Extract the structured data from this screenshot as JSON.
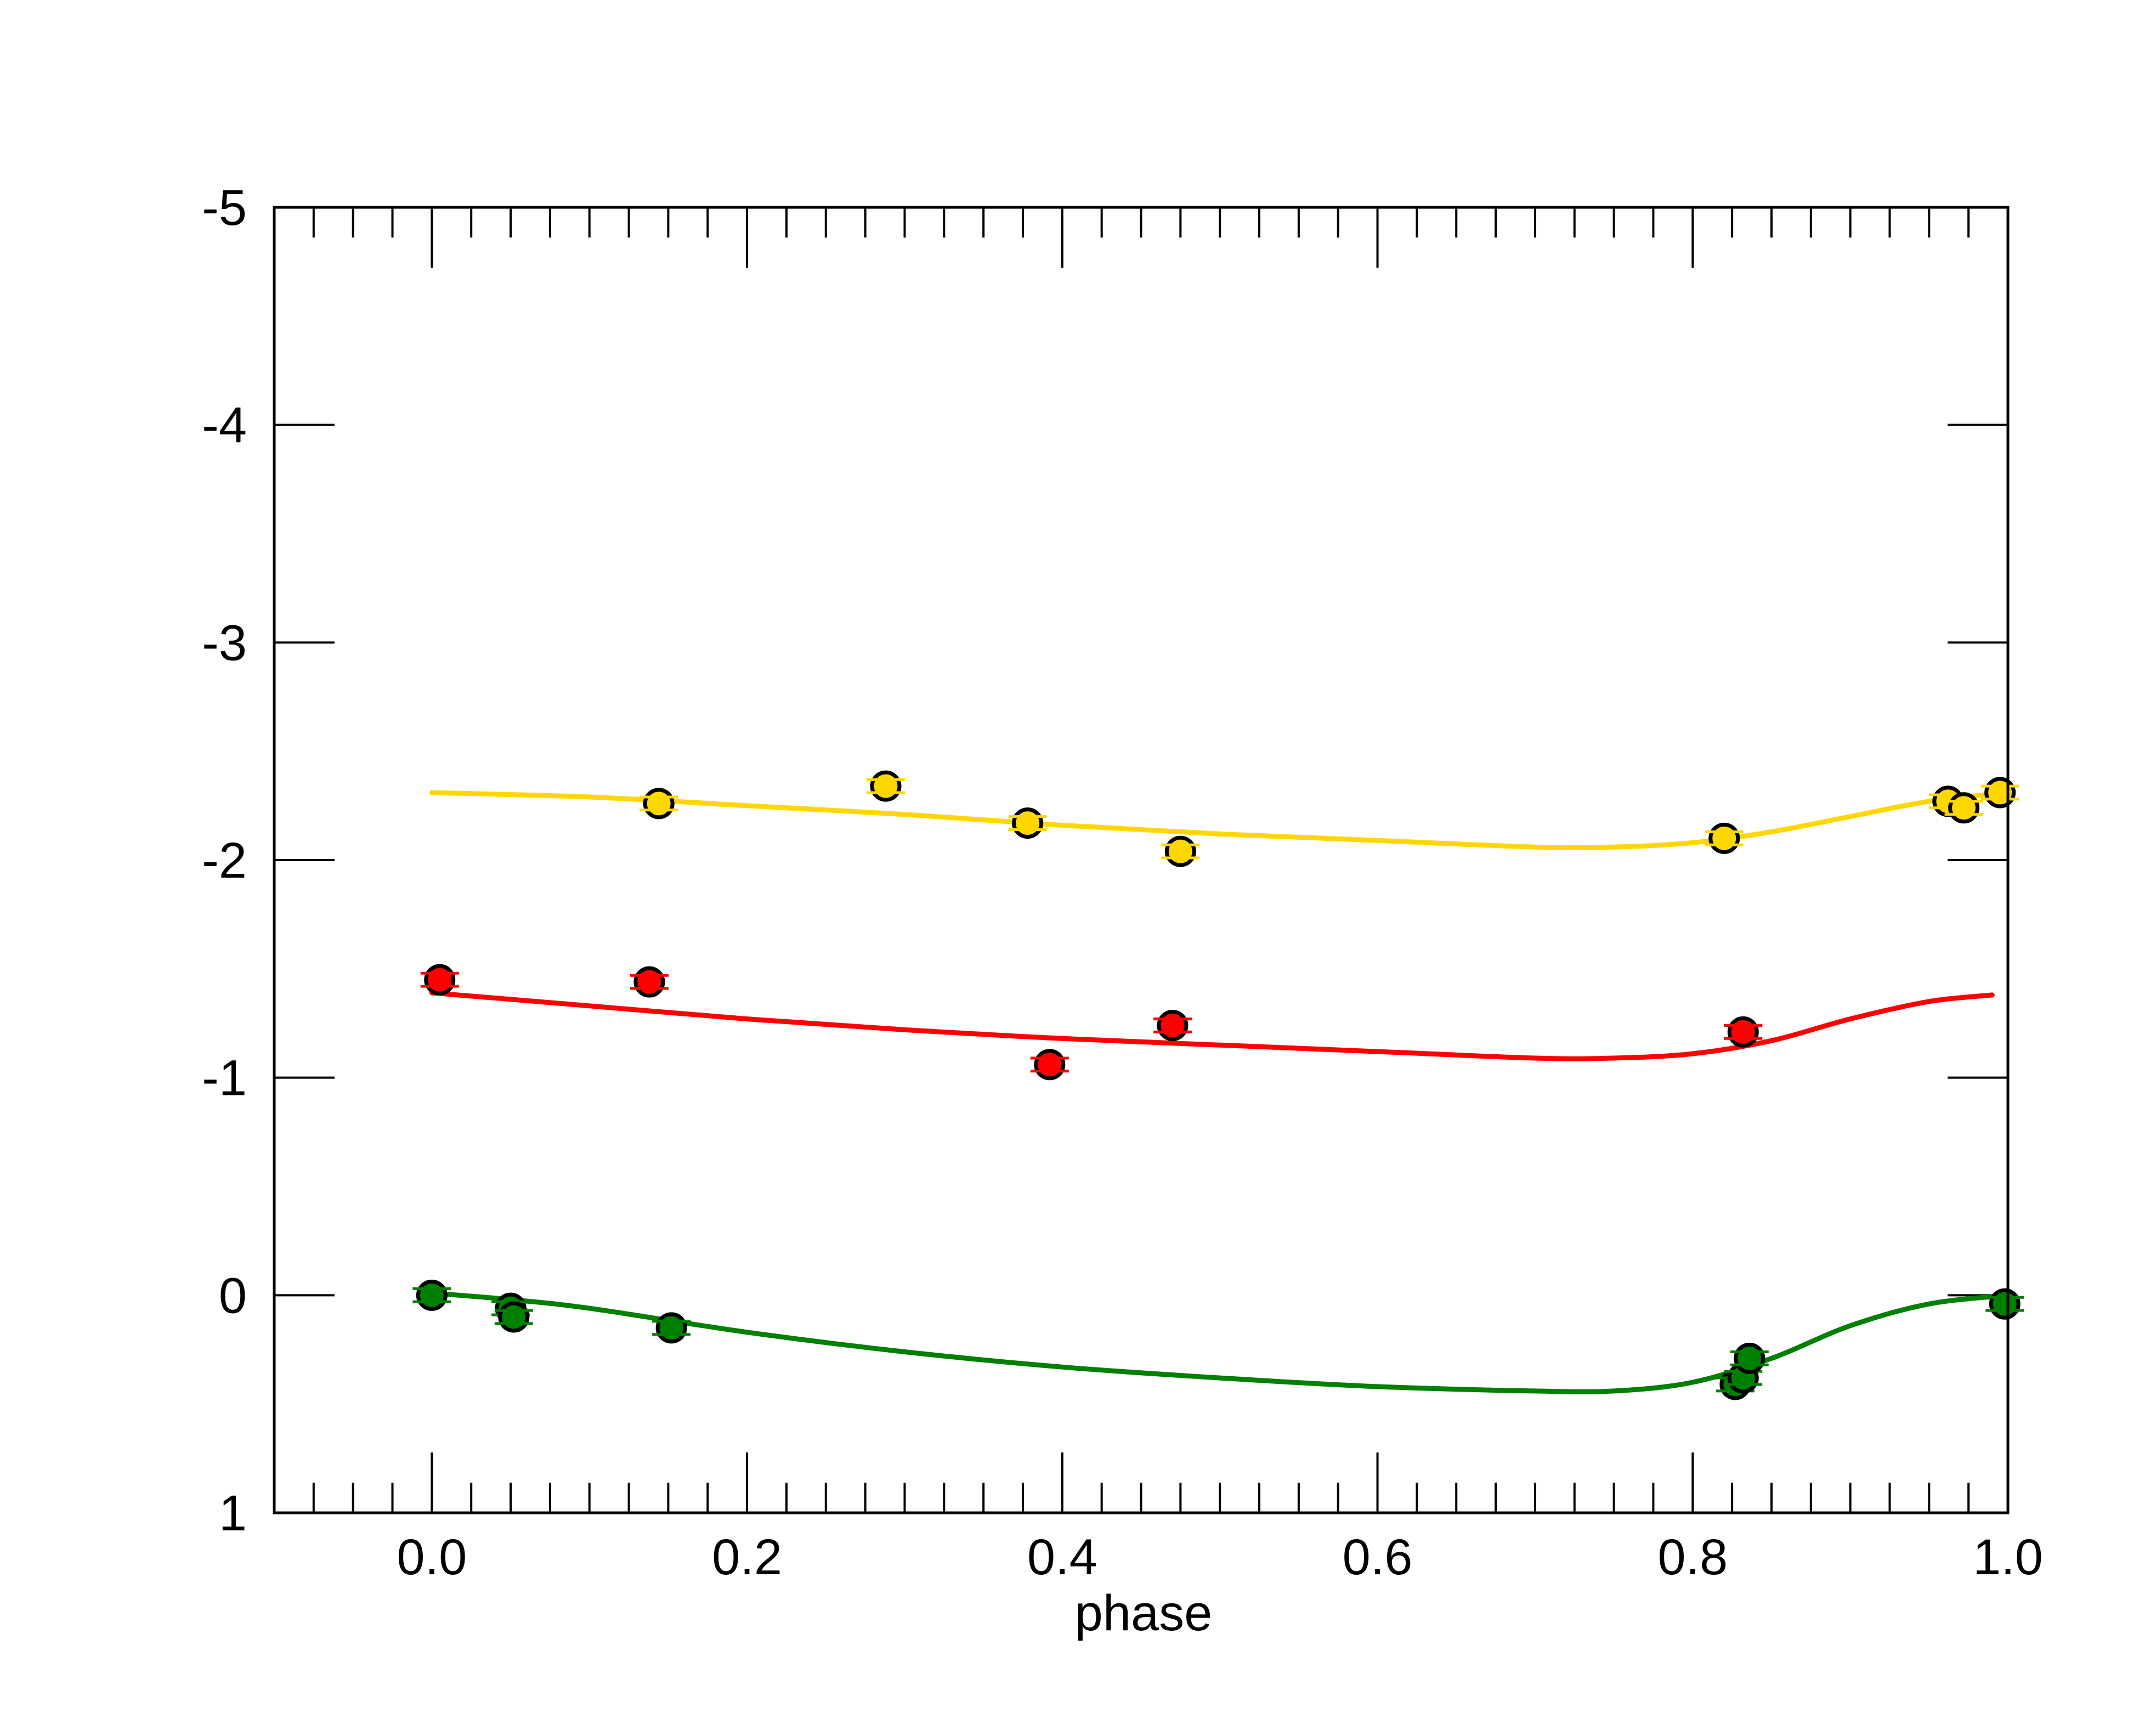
{
  "chart_data": {
    "type": "scatter",
    "title": "",
    "xlabel": "phase",
    "ylabel": "",
    "xlim": [
      -0.1,
      1.0
    ],
    "ylim": [
      1,
      -5
    ],
    "y_inverted": true,
    "grid": false,
    "legend": "none",
    "x_ticks": [
      0.0,
      0.2,
      0.4,
      0.6,
      0.8,
      1.0
    ],
    "x_tick_labels": [
      "0.0",
      "0.2",
      "0.4",
      "0.6",
      "0.8",
      "1.0"
    ],
    "y_ticks": [
      -5,
      -4,
      -3,
      -2,
      -1,
      0,
      1
    ],
    "y_tick_labels": [
      "-5",
      "-4",
      "-3",
      "-2",
      "-1",
      "0",
      "1"
    ],
    "series": [
      {
        "color": "#ffd700",
        "points": [
          {
            "x": 0.144,
            "y": -2.26,
            "err": 0.03
          },
          {
            "x": 0.288,
            "y": -2.34,
            "err": 0.03
          },
          {
            "x": 0.378,
            "y": -2.17,
            "err": 0.03
          },
          {
            "x": 0.475,
            "y": -2.04,
            "err": 0.03
          },
          {
            "x": 0.82,
            "y": -2.1,
            "err": 0.03
          },
          {
            "x": 0.962,
            "y": -2.27,
            "err": 0.03
          },
          {
            "x": 0.972,
            "y": -2.24,
            "err": 0.03
          },
          {
            "x": 0.995,
            "y": -2.31,
            "err": 0.03
          }
        ],
        "model": {
          "x": [
            0.0,
            0.1,
            0.2,
            0.3,
            0.4,
            0.5,
            0.6,
            0.7,
            0.75,
            0.8,
            0.85,
            0.9,
            0.95,
            1.0
          ],
          "y": [
            -2.31,
            -2.29,
            -2.25,
            -2.21,
            -2.16,
            -2.12,
            -2.09,
            -2.06,
            -2.06,
            -2.08,
            -2.13,
            -2.2,
            -2.27,
            -2.31
          ]
        }
      },
      {
        "color": "#ff0000",
        "points": [
          {
            "x": 0.005,
            "y": -1.45,
            "err": 0.03
          },
          {
            "x": 0.138,
            "y": -1.44,
            "err": 0.03
          },
          {
            "x": 0.392,
            "y": -1.06,
            "err": 0.03
          },
          {
            "x": 0.47,
            "y": -1.24,
            "err": 0.03
          },
          {
            "x": 0.832,
            "y": -1.21,
            "err": 0.03
          }
        ],
        "model": {
          "x": [
            0.0,
            0.1,
            0.2,
            0.3,
            0.4,
            0.5,
            0.6,
            0.7,
            0.75,
            0.8,
            0.85,
            0.9,
            0.95,
            0.99
          ],
          "y": [
            -1.39,
            -1.33,
            -1.27,
            -1.22,
            -1.18,
            -1.15,
            -1.12,
            -1.09,
            -1.09,
            -1.11,
            -1.17,
            -1.27,
            -1.35,
            -1.38
          ]
        }
      },
      {
        "color": "#008000",
        "points": [
          {
            "x": 0.0,
            "y": 0.0,
            "err": 0.03
          },
          {
            "x": 0.05,
            "y": 0.06,
            "err": 0.03
          },
          {
            "x": 0.052,
            "y": 0.1,
            "err": 0.03
          },
          {
            "x": 0.152,
            "y": 0.15,
            "err": 0.03
          },
          {
            "x": 0.827,
            "y": 0.41,
            "err": 0.03
          },
          {
            "x": 0.832,
            "y": 0.38,
            "err": 0.03
          },
          {
            "x": 0.836,
            "y": 0.29,
            "err": 0.03
          },
          {
            "x": 0.998,
            "y": 0.04,
            "err": 0.03
          }
        ],
        "model": {
          "x": [
            0.0,
            0.05,
            0.1,
            0.2,
            0.3,
            0.4,
            0.5,
            0.6,
            0.7,
            0.75,
            0.8,
            0.85,
            0.9,
            0.95,
            1.0
          ],
          "y": [
            -0.01,
            0.02,
            0.06,
            0.17,
            0.26,
            0.33,
            0.38,
            0.42,
            0.44,
            0.44,
            0.4,
            0.29,
            0.14,
            0.04,
            0.0
          ]
        }
      }
    ]
  }
}
